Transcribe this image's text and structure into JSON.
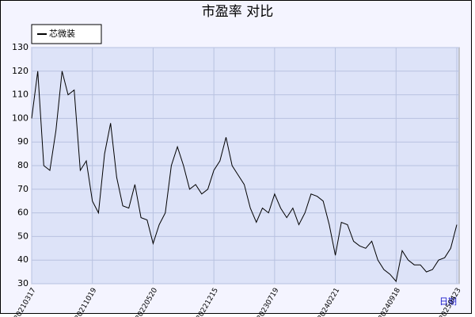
{
  "chart_data": {
    "type": "line",
    "title": "市盈率  对比",
    "x_label": "日期",
    "categories": [
      "20210317",
      null,
      null,
      null,
      null,
      null,
      null,
      null,
      null,
      null,
      "20211019",
      null,
      null,
      null,
      null,
      null,
      null,
      null,
      null,
      null,
      "20220520",
      null,
      null,
      null,
      null,
      null,
      null,
      null,
      null,
      null,
      "20221215",
      null,
      null,
      null,
      null,
      null,
      null,
      null,
      null,
      null,
      "20230719",
      null,
      null,
      null,
      null,
      null,
      null,
      null,
      null,
      null,
      "20240221",
      null,
      null,
      null,
      null,
      null,
      null,
      null,
      null,
      null,
      "20240918",
      null,
      null,
      null,
      null,
      null,
      null,
      null,
      null,
      null,
      "20250423"
    ],
    "series": [
      {
        "name": "芯微装",
        "color": "#000000",
        "values": [
          100,
          120,
          80,
          78,
          95,
          120,
          110,
          112,
          78,
          82,
          65,
          60,
          85,
          98,
          75,
          63,
          62,
          72,
          58,
          57,
          47,
          55,
          60,
          80,
          88,
          80,
          70,
          72,
          68,
          70,
          78,
          82,
          92,
          80,
          76,
          72,
          62,
          56,
          62,
          60,
          68,
          62,
          58,
          62,
          55,
          60,
          68,
          67,
          65,
          55,
          42,
          56,
          55,
          48,
          46,
          45,
          48,
          40,
          36,
          34,
          31,
          44,
          40,
          38,
          38,
          35,
          36,
          40,
          41,
          45,
          55
        ]
      }
    ],
    "ylim": [
      30,
      130
    ],
    "yticks": [
      30,
      40,
      50,
      60,
      70,
      80,
      90,
      100,
      110,
      120,
      130
    ],
    "grid": true,
    "legend": "top-left"
  }
}
